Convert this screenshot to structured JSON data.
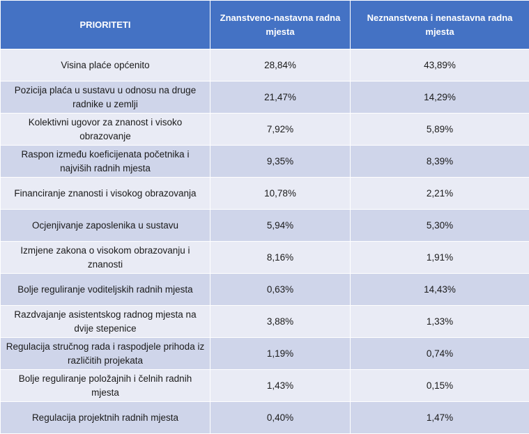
{
  "table": {
    "headers": [
      "PRIORITETI",
      "Znanstveno-nastavna radna mjesta",
      "Neznanstvena i nenastavna radna mjesta"
    ],
    "rows": [
      {
        "priority": "Visina plaće općenito",
        "scientific": "28,84%",
        "non_scientific": "43,89%"
      },
      {
        "priority": "Pozicija plaća u sustavu u odnosu na druge radnike u zemlji",
        "scientific": "21,47%",
        "non_scientific": "14,29%"
      },
      {
        "priority": "Kolektivni ugovor za znanost i visoko obrazovanje",
        "scientific": "7,92%",
        "non_scientific": "5,89%"
      },
      {
        "priority": "Raspon između koeficijenata početnika i najviših radnih mjesta",
        "scientific": "9,35%",
        "non_scientific": "8,39%"
      },
      {
        "priority": "Financiranje znanosti i visokog obrazovanja",
        "scientific": "10,78%",
        "non_scientific": "2,21%"
      },
      {
        "priority": "Ocjenjivanje zaposlenika u sustavu",
        "scientific": "5,94%",
        "non_scientific": "5,30%"
      },
      {
        "priority": "Izmjene zakona o visokom obrazovanju i znanosti",
        "scientific": "8,16%",
        "non_scientific": "1,91%"
      },
      {
        "priority": "Bolje reguliranje voditeljskih radnih mjesta",
        "scientific": "0,63%",
        "non_scientific": "14,43%"
      },
      {
        "priority": "Razdvajanje asistentskog radnog mjesta na dvije stepenice",
        "scientific": "3,88%",
        "non_scientific": "1,33%"
      },
      {
        "priority": "Regulacija stručnog rada i raspodjele prihoda iz različitih projekata",
        "scientific": "1,19%",
        "non_scientific": "0,74%"
      },
      {
        "priority": "Bolje reguliranje položajnih i čelnih radnih mjesta",
        "scientific": "1,43%",
        "non_scientific": "0,15%"
      },
      {
        "priority": "Regulacija projektnih radnih mjesta",
        "scientific": "0,40%",
        "non_scientific": "1,47%"
      }
    ]
  }
}
